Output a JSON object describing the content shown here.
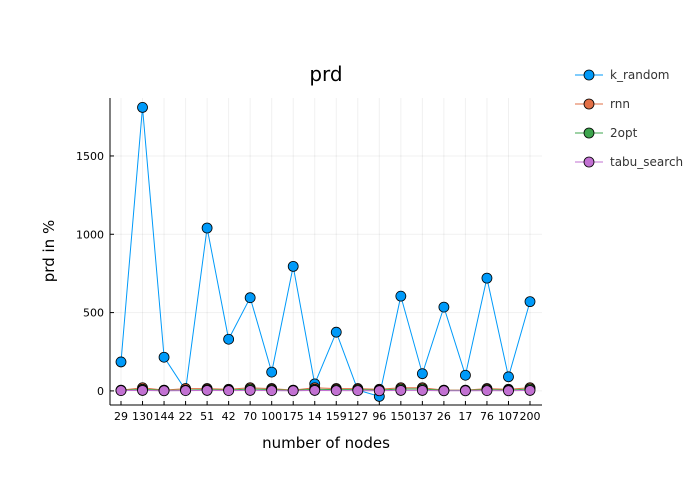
{
  "chart_data": {
    "type": "line",
    "title": "prd",
    "xlabel": "number of nodes",
    "ylabel": "prd in %",
    "categories": [
      "29",
      "130",
      "144",
      "22",
      "51",
      "42",
      "70",
      "100",
      "175",
      "14",
      "159",
      "127",
      "96",
      "150",
      "137",
      "26",
      "17",
      "76",
      "107",
      "200"
    ],
    "yticks": [
      0,
      500,
      1000,
      1500
    ],
    "ylim": [
      -90,
      1870
    ],
    "grid": true,
    "legend_position": "top-right, outside plot",
    "series": [
      {
        "name": "k_random",
        "color": "#009af9",
        "values": [
          185,
          1810,
          215,
          5,
          1040,
          330,
          595,
          120,
          795,
          45,
          375,
          5,
          -35,
          605,
          110,
          535,
          100,
          720,
          90,
          570
        ]
      },
      {
        "name": "rnn",
        "color": "#e26f46",
        "values": [
          5,
          20,
          5,
          15,
          15,
          10,
          20,
          15,
          5,
          20,
          15,
          15,
          10,
          20,
          20,
          5,
          5,
          15,
          10,
          20
        ]
      },
      {
        "name": "2opt",
        "color": "#3da44d",
        "values": [
          3,
          10,
          3,
          5,
          8,
          5,
          12,
          8,
          3,
          10,
          8,
          8,
          5,
          12,
          12,
          3,
          3,
          8,
          5,
          12
        ]
      },
      {
        "name": "tabu_search",
        "color": "#c271d2",
        "values": [
          2,
          3,
          1,
          2,
          3,
          2,
          3,
          2,
          1,
          3,
          2,
          2,
          1,
          3,
          3,
          1,
          1,
          2,
          1,
          3
        ]
      }
    ]
  }
}
